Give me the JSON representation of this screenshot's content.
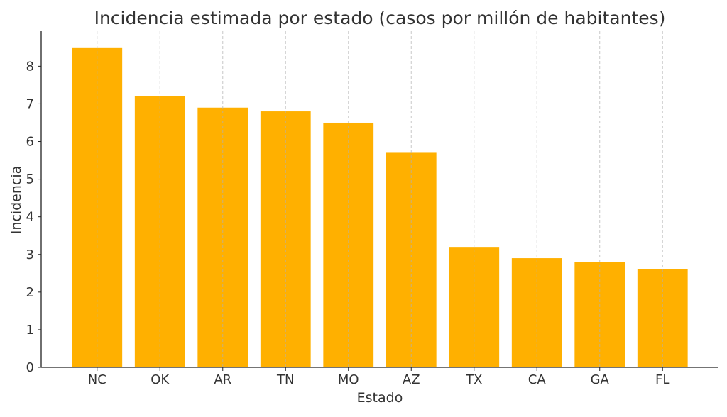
{
  "chart_data": {
    "type": "bar",
    "title": "Incidencia estimada por estado (casos por millón de habitantes)",
    "xlabel": "Estado",
    "ylabel": "Incidencia",
    "categories": [
      "NC",
      "OK",
      "AR",
      "TN",
      "MO",
      "AZ",
      "TX",
      "CA",
      "GA",
      "FL"
    ],
    "values": [
      8.5,
      7.2,
      6.9,
      6.8,
      6.5,
      5.7,
      3.2,
      2.9,
      2.8,
      2.6
    ],
    "ylim": [
      0,
      8.93
    ],
    "yticks": [
      0,
      1,
      2,
      3,
      4,
      5,
      6,
      7,
      8
    ],
    "grid": "x-dashed",
    "bar_color": "#FFB000"
  }
}
